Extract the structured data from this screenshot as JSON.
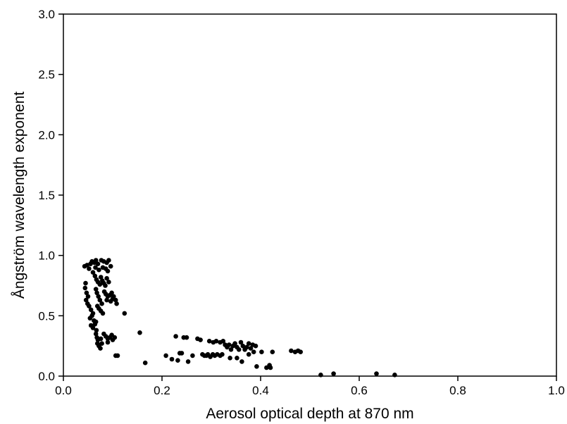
{
  "chart_data": {
    "type": "scatter",
    "xlabel": "Aerosol optical depth at 870 nm",
    "ylabel": "Ångström wavelength exponent",
    "xlim": [
      0.0,
      1.0
    ],
    "ylim": [
      0.0,
      3.0
    ],
    "x_ticks": [
      "0.0",
      "0.2",
      "0.4",
      "0.6",
      "0.8",
      "1.0"
    ],
    "y_ticks": [
      "0.0",
      "0.5",
      "1.0",
      "1.5",
      "2.0",
      "2.5",
      "3.0"
    ],
    "grid": false,
    "marker_color": "#000000",
    "series": [
      {
        "points": [
          [
            0.043,
            0.91
          ],
          [
            0.048,
            0.92
          ],
          [
            0.055,
            0.93
          ],
          [
            0.058,
            0.95
          ],
          [
            0.063,
            0.94
          ],
          [
            0.066,
            0.96
          ],
          [
            0.07,
            0.93
          ],
          [
            0.077,
            0.96
          ],
          [
            0.082,
            0.95
          ],
          [
            0.088,
            0.94
          ],
          [
            0.092,
            0.96
          ],
          [
            0.096,
            0.91
          ],
          [
            0.052,
            0.89
          ],
          [
            0.06,
            0.86
          ],
          [
            0.065,
            0.9
          ],
          [
            0.072,
            0.88
          ],
          [
            0.08,
            0.9
          ],
          [
            0.086,
            0.89
          ],
          [
            0.09,
            0.87
          ],
          [
            0.045,
            0.77
          ],
          [
            0.044,
            0.73
          ],
          [
            0.047,
            0.69
          ],
          [
            0.05,
            0.66
          ],
          [
            0.046,
            0.63
          ],
          [
            0.049,
            0.6
          ],
          [
            0.052,
            0.58
          ],
          [
            0.056,
            0.55
          ],
          [
            0.06,
            0.52
          ],
          [
            0.058,
            0.5
          ],
          [
            0.054,
            0.48
          ],
          [
            0.062,
            0.46
          ],
          [
            0.066,
            0.45
          ],
          [
            0.056,
            0.42
          ],
          [
            0.06,
            0.4
          ],
          [
            0.064,
            0.83
          ],
          [
            0.067,
            0.8
          ],
          [
            0.07,
            0.78
          ],
          [
            0.074,
            0.76
          ],
          [
            0.076,
            0.82
          ],
          [
            0.079,
            0.79
          ],
          [
            0.082,
            0.77
          ],
          [
            0.085,
            0.75
          ],
          [
            0.088,
            0.81
          ],
          [
            0.092,
            0.78
          ],
          [
            0.066,
            0.72
          ],
          [
            0.068,
            0.69
          ],
          [
            0.071,
            0.66
          ],
          [
            0.074,
            0.63
          ],
          [
            0.078,
            0.6
          ],
          [
            0.069,
            0.58
          ],
          [
            0.072,
            0.56
          ],
          [
            0.076,
            0.54
          ],
          [
            0.08,
            0.52
          ],
          [
            0.083,
            0.7
          ],
          [
            0.086,
            0.68
          ],
          [
            0.09,
            0.66
          ],
          [
            0.094,
            0.67
          ],
          [
            0.098,
            0.69
          ],
          [
            0.102,
            0.66
          ],
          [
            0.106,
            0.63
          ],
          [
            0.108,
            0.6
          ],
          [
            0.1,
            0.64
          ],
          [
            0.096,
            0.62
          ],
          [
            0.088,
            0.63
          ],
          [
            0.064,
            0.43
          ],
          [
            0.067,
            0.38
          ],
          [
            0.066,
            0.35
          ],
          [
            0.068,
            0.32
          ],
          [
            0.07,
            0.3
          ],
          [
            0.069,
            0.27
          ],
          [
            0.072,
            0.25
          ],
          [
            0.075,
            0.23
          ],
          [
            0.078,
            0.27
          ],
          [
            0.076,
            0.31
          ],
          [
            0.082,
            0.35
          ],
          [
            0.086,
            0.33
          ],
          [
            0.09,
            0.31
          ],
          [
            0.094,
            0.32
          ],
          [
            0.1,
            0.3
          ],
          [
            0.104,
            0.32
          ],
          [
            0.098,
            0.34
          ],
          [
            0.09,
            0.28
          ],
          [
            0.106,
            0.17
          ],
          [
            0.11,
            0.17
          ],
          [
            0.124,
            0.52
          ],
          [
            0.155,
            0.36
          ],
          [
            0.166,
            0.11
          ],
          [
            0.208,
            0.17
          ],
          [
            0.22,
            0.14
          ],
          [
            0.228,
            0.33
          ],
          [
            0.232,
            0.13
          ],
          [
            0.236,
            0.19
          ],
          [
            0.24,
            0.19
          ],
          [
            0.244,
            0.32
          ],
          [
            0.25,
            0.32
          ],
          [
            0.253,
            0.12
          ],
          [
            0.262,
            0.17
          ],
          [
            0.272,
            0.31
          ],
          [
            0.278,
            0.3
          ],
          [
            0.282,
            0.18
          ],
          [
            0.286,
            0.17
          ],
          [
            0.29,
            0.17
          ],
          [
            0.293,
            0.18
          ],
          [
            0.298,
            0.16
          ],
          [
            0.303,
            0.18
          ],
          [
            0.307,
            0.17
          ],
          [
            0.312,
            0.18
          ],
          [
            0.318,
            0.17
          ],
          [
            0.322,
            0.18
          ],
          [
            0.296,
            0.29
          ],
          [
            0.304,
            0.28
          ],
          [
            0.31,
            0.29
          ],
          [
            0.318,
            0.28
          ],
          [
            0.324,
            0.29
          ],
          [
            0.328,
            0.26
          ],
          [
            0.332,
            0.24
          ],
          [
            0.336,
            0.26
          ],
          [
            0.34,
            0.22
          ],
          [
            0.344,
            0.25
          ],
          [
            0.348,
            0.27
          ],
          [
            0.352,
            0.24
          ],
          [
            0.356,
            0.22
          ],
          [
            0.36,
            0.28
          ],
          [
            0.364,
            0.25
          ],
          [
            0.368,
            0.22
          ],
          [
            0.372,
            0.24
          ],
          [
            0.376,
            0.27
          ],
          [
            0.38,
            0.23
          ],
          [
            0.384,
            0.26
          ],
          [
            0.386,
            0.2
          ],
          [
            0.39,
            0.25
          ],
          [
            0.338,
            0.15
          ],
          [
            0.352,
            0.15
          ],
          [
            0.362,
            0.12
          ],
          [
            0.376,
            0.18
          ],
          [
            0.392,
            0.08
          ],
          [
            0.402,
            0.2
          ],
          [
            0.412,
            0.07
          ],
          [
            0.418,
            0.09
          ],
          [
            0.42,
            0.07
          ],
          [
            0.424,
            0.2
          ],
          [
            0.462,
            0.21
          ],
          [
            0.47,
            0.2
          ],
          [
            0.476,
            0.21
          ],
          [
            0.481,
            0.2
          ],
          [
            0.522,
            0.01
          ],
          [
            0.548,
            0.02
          ],
          [
            0.635,
            0.02
          ],
          [
            0.672,
            0.01
          ]
        ]
      }
    ]
  }
}
